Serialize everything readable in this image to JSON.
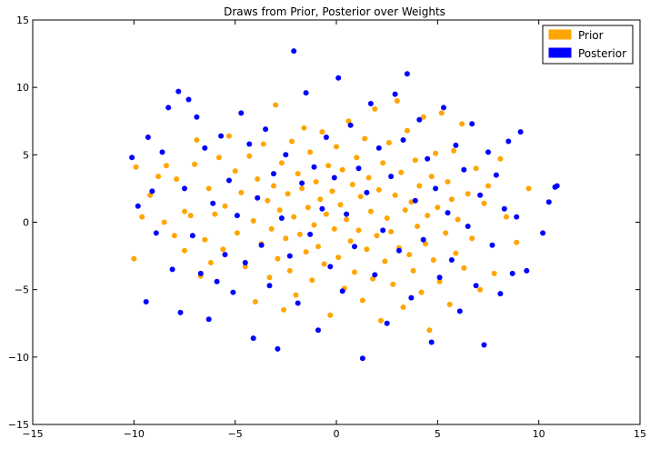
{
  "chart_data": {
    "type": "scatter",
    "title": "Draws from Prior, Posterior over Weights",
    "xlabel": "",
    "ylabel": "",
    "xlim": [
      -15,
      15
    ],
    "ylim": [
      -15,
      15
    ],
    "xticks": [
      "−15",
      "−10",
      "−5",
      "0",
      "5",
      "10",
      "15"
    ],
    "yticks": [
      "15",
      "10",
      "5",
      "0",
      "−5",
      "−10",
      "−15"
    ],
    "grid": false,
    "legend_position": "top-right",
    "series": [
      {
        "name": "Prior",
        "color": "#ffa500",
        "points": [
          [
            -10.0,
            -2.7
          ],
          [
            -9.9,
            4.1
          ],
          [
            -9.6,
            0.4
          ],
          [
            -9.2,
            2.0
          ],
          [
            -8.8,
            3.4
          ],
          [
            -8.5,
            0.0
          ],
          [
            -8.4,
            4.2
          ],
          [
            -8.0,
            -1.0
          ],
          [
            -7.9,
            3.2
          ],
          [
            -7.5,
            0.8
          ],
          [
            -7.5,
            -2.1
          ],
          [
            -7.2,
            0.5
          ],
          [
            -7.0,
            4.3
          ],
          [
            -6.9,
            6.1
          ],
          [
            -6.7,
            -4.0
          ],
          [
            -6.5,
            -1.3
          ],
          [
            -6.3,
            2.5
          ],
          [
            -6.2,
            -3.0
          ],
          [
            -6.0,
            0.6
          ],
          [
            -5.8,
            4.8
          ],
          [
            -5.6,
            -2.0
          ],
          [
            -5.5,
            1.2
          ],
          [
            -5.3,
            6.4
          ],
          [
            -5.0,
            3.8
          ],
          [
            -4.9,
            -0.8
          ],
          [
            -4.7,
            2.2
          ],
          [
            -4.5,
            -3.3
          ],
          [
            -4.3,
            4.9
          ],
          [
            -4.1,
            0.1
          ],
          [
            -4.0,
            -5.9
          ],
          [
            -3.9,
            3.2
          ],
          [
            -3.7,
            -1.6
          ],
          [
            -3.6,
            5.8
          ],
          [
            -3.4,
            1.6
          ],
          [
            -3.3,
            -4.1
          ],
          [
            -3.2,
            -0.5
          ],
          [
            -3.1,
            2.7
          ],
          [
            -3.0,
            8.7
          ],
          [
            -2.9,
            -2.7
          ],
          [
            -2.8,
            0.9
          ],
          [
            -2.7,
            4.4
          ],
          [
            -2.6,
            -6.5
          ],
          [
            -2.5,
            -1.2
          ],
          [
            -2.4,
            2.1
          ],
          [
            -2.3,
            -3.6
          ],
          [
            -2.2,
            6.0
          ],
          [
            -2.1,
            0.4
          ],
          [
            -2.0,
            -5.4
          ],
          [
            -1.9,
            3.6
          ],
          [
            -1.8,
            -0.9
          ],
          [
            -1.7,
            2.5
          ],
          [
            -1.6,
            7.0
          ],
          [
            -1.5,
            -2.2
          ],
          [
            -1.4,
            1.1
          ],
          [
            -1.3,
            5.2
          ],
          [
            -1.2,
            -4.3
          ],
          [
            -1.1,
            -0.2
          ],
          [
            -1.0,
            3.0
          ],
          [
            -0.9,
            -1.8
          ],
          [
            -0.8,
            1.7
          ],
          [
            -0.7,
            6.7
          ],
          [
            -0.6,
            -3.1
          ],
          [
            -0.5,
            0.6
          ],
          [
            -0.4,
            4.2
          ],
          [
            -0.3,
            -6.9
          ],
          [
            -0.2,
            2.3
          ],
          [
            -0.1,
            -0.5
          ],
          [
            0.0,
            5.6
          ],
          [
            0.1,
            -2.6
          ],
          [
            0.2,
            1.3
          ],
          [
            0.3,
            3.9
          ],
          [
            0.4,
            -4.9
          ],
          [
            0.5,
            0.2
          ],
          [
            0.6,
            7.5
          ],
          [
            0.7,
            -1.4
          ],
          [
            0.8,
            2.8
          ],
          [
            0.9,
            -3.7
          ],
          [
            1.0,
            4.8
          ],
          [
            1.1,
            -0.6
          ],
          [
            1.2,
            1.9
          ],
          [
            1.3,
            -5.8
          ],
          [
            1.4,
            6.2
          ],
          [
            1.5,
            -2.0
          ],
          [
            1.6,
            3.3
          ],
          [
            1.7,
            0.8
          ],
          [
            1.8,
            -4.2
          ],
          [
            1.9,
            8.4
          ],
          [
            2.0,
            -1.0
          ],
          [
            2.1,
            2.4
          ],
          [
            2.2,
            -7.3
          ],
          [
            2.3,
            4.4
          ],
          [
            2.4,
            -2.9
          ],
          [
            2.5,
            0.3
          ],
          [
            2.6,
            5.9
          ],
          [
            2.7,
            -0.7
          ],
          [
            2.8,
            -4.6
          ],
          [
            2.9,
            2.0
          ],
          [
            3.0,
            9.0
          ],
          [
            3.1,
            -1.9
          ],
          [
            3.2,
            3.7
          ],
          [
            3.3,
            -6.3
          ],
          [
            3.4,
            0.9
          ],
          [
            3.5,
            6.8
          ],
          [
            3.6,
            -2.4
          ],
          [
            3.7,
            1.5
          ],
          [
            3.8,
            -3.6
          ],
          [
            3.9,
            4.6
          ],
          [
            4.0,
            -0.3
          ],
          [
            4.1,
            2.7
          ],
          [
            4.2,
            -5.2
          ],
          [
            4.3,
            7.8
          ],
          [
            4.4,
            -1.6
          ],
          [
            4.5,
            0.5
          ],
          [
            4.6,
            -8.0
          ],
          [
            4.7,
            3.4
          ],
          [
            4.8,
            -2.8
          ],
          [
            4.9,
            5.1
          ],
          [
            5.0,
            1.1
          ],
          [
            5.1,
            -4.4
          ],
          [
            5.2,
            8.1
          ],
          [
            5.4,
            -0.8
          ],
          [
            5.5,
            3.0
          ],
          [
            5.6,
            -6.1
          ],
          [
            5.7,
            1.7
          ],
          [
            5.8,
            5.3
          ],
          [
            5.9,
            -2.3
          ],
          [
            6.0,
            0.2
          ],
          [
            6.2,
            7.3
          ],
          [
            6.3,
            -3.4
          ],
          [
            6.5,
            2.1
          ],
          [
            6.7,
            -1.2
          ],
          [
            6.9,
            4.0
          ],
          [
            7.1,
            -5.0
          ],
          [
            7.3,
            1.4
          ],
          [
            7.5,
            2.7
          ],
          [
            7.8,
            -3.8
          ],
          [
            8.1,
            4.7
          ],
          [
            8.4,
            0.4
          ],
          [
            8.9,
            -1.5
          ],
          [
            9.5,
            2.5
          ]
        ]
      },
      {
        "name": "Posterior",
        "color": "#0000ff",
        "points": [
          [
            -10.1,
            4.8
          ],
          [
            -9.8,
            1.2
          ],
          [
            -9.4,
            -5.9
          ],
          [
            -9.3,
            6.3
          ],
          [
            -9.1,
            2.3
          ],
          [
            -8.9,
            -0.8
          ],
          [
            -8.6,
            5.2
          ],
          [
            -8.3,
            8.5
          ],
          [
            -8.1,
            -3.5
          ],
          [
            -7.8,
            9.7
          ],
          [
            -7.7,
            -6.7
          ],
          [
            -7.5,
            2.5
          ],
          [
            -7.3,
            9.1
          ],
          [
            -7.1,
            -1.0
          ],
          [
            -6.9,
            7.8
          ],
          [
            -6.7,
            -3.8
          ],
          [
            -6.5,
            5.5
          ],
          [
            -6.3,
            -7.2
          ],
          [
            -6.1,
            1.4
          ],
          [
            -5.9,
            -4.4
          ],
          [
            -5.7,
            6.4
          ],
          [
            -5.5,
            -2.4
          ],
          [
            -5.3,
            3.1
          ],
          [
            -5.1,
            -5.2
          ],
          [
            -4.9,
            0.5
          ],
          [
            -4.7,
            8.1
          ],
          [
            -4.5,
            -3.0
          ],
          [
            -4.3,
            5.8
          ],
          [
            -4.1,
            -8.6
          ],
          [
            -3.9,
            1.8
          ],
          [
            -3.7,
            -1.7
          ],
          [
            -3.5,
            6.9
          ],
          [
            -3.3,
            -4.7
          ],
          [
            -3.1,
            3.6
          ],
          [
            -2.9,
            -9.4
          ],
          [
            -2.7,
            0.3
          ],
          [
            -2.5,
            5.0
          ],
          [
            -2.3,
            -2.5
          ],
          [
            -2.1,
            12.7
          ],
          [
            -1.9,
            -6.0
          ],
          [
            -1.7,
            2.9
          ],
          [
            -1.5,
            9.6
          ],
          [
            -1.3,
            -0.9
          ],
          [
            -1.1,
            4.1
          ],
          [
            -0.9,
            -8.0
          ],
          [
            -0.7,
            1.0
          ],
          [
            -0.5,
            6.3
          ],
          [
            -0.3,
            -3.3
          ],
          [
            -0.1,
            3.3
          ],
          [
            0.1,
            10.7
          ],
          [
            0.3,
            -5.1
          ],
          [
            0.5,
            0.6
          ],
          [
            0.7,
            7.2
          ],
          [
            0.9,
            -1.8
          ],
          [
            1.1,
            4.0
          ],
          [
            1.3,
            -10.1
          ],
          [
            1.5,
            2.2
          ],
          [
            1.7,
            8.8
          ],
          [
            1.9,
            -3.9
          ],
          [
            2.1,
            5.5
          ],
          [
            2.3,
            -0.6
          ],
          [
            2.5,
            -7.5
          ],
          [
            2.7,
            3.4
          ],
          [
            2.9,
            9.5
          ],
          [
            3.1,
            -2.1
          ],
          [
            3.3,
            6.1
          ],
          [
            3.5,
            11.0
          ],
          [
            3.7,
            -5.6
          ],
          [
            3.9,
            1.6
          ],
          [
            4.1,
            7.6
          ],
          [
            4.3,
            -1.3
          ],
          [
            4.5,
            4.7
          ],
          [
            4.7,
            -8.9
          ],
          [
            4.9,
            2.5
          ],
          [
            5.1,
            -4.1
          ],
          [
            5.3,
            8.5
          ],
          [
            5.5,
            0.7
          ],
          [
            5.7,
            -2.8
          ],
          [
            5.9,
            5.7
          ],
          [
            6.1,
            -6.6
          ],
          [
            6.3,
            3.9
          ],
          [
            6.5,
            -0.3
          ],
          [
            6.7,
            7.3
          ],
          [
            6.9,
            -4.7
          ],
          [
            7.1,
            2.0
          ],
          [
            7.3,
            -9.1
          ],
          [
            7.5,
            5.2
          ],
          [
            7.7,
            -1.7
          ],
          [
            7.9,
            3.5
          ],
          [
            8.1,
            -5.3
          ],
          [
            8.3,
            1.0
          ],
          [
            8.5,
            6.0
          ],
          [
            8.7,
            -3.8
          ],
          [
            8.9,
            0.4
          ],
          [
            9.1,
            6.7
          ],
          [
            9.4,
            -3.6
          ],
          [
            10.2,
            -0.8
          ],
          [
            10.5,
            1.5
          ],
          [
            10.8,
            2.6
          ],
          [
            10.9,
            2.7
          ]
        ]
      }
    ]
  }
}
